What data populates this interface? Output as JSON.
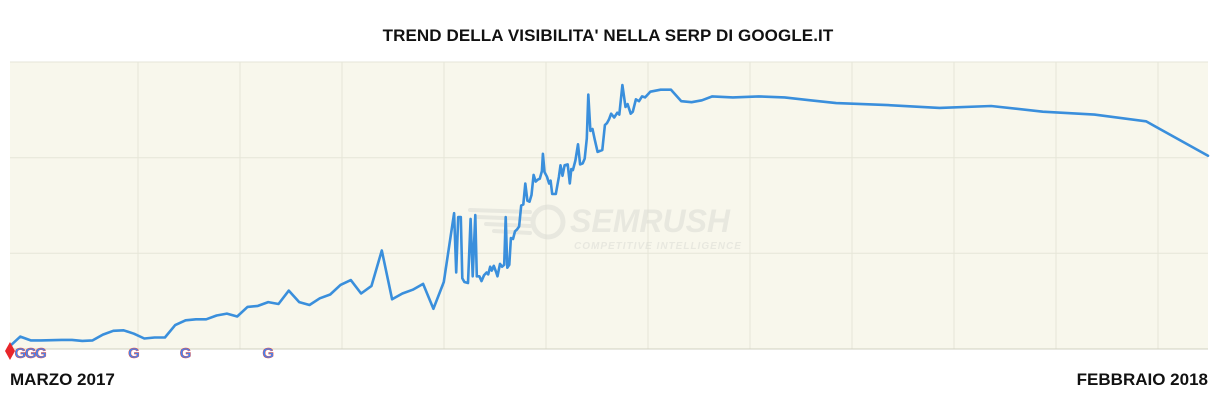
{
  "title": "TREND DELLA VISIBILITA' NELLA SERP DI GOOGLE.IT",
  "colors": {
    "plot_bg": "#f8f7ec",
    "line": "#3a8fdc",
    "grid": "#e6e6d8",
    "marker_red": "#e8262a"
  },
  "watermark": {
    "brand": "SEMRUSH",
    "tagline": "COMPETITIVE INTELLIGENCE"
  },
  "chart_data": {
    "type": "line",
    "title": "TREND DELLA VISIBILITA' NELLA SERP DI GOOGLE.IT",
    "x_start_label": "MARZO 2017",
    "x_end_label": "FEBBRAIO 2018",
    "x_range": [
      "2017-03",
      "2018-02"
    ],
    "y_axis_labels_shown": false,
    "grid": true,
    "ylim": [
      0,
      30
    ],
    "series": [
      {
        "values": [
          [
            0.0,
            0.3
          ],
          [
            2.0,
            1.3
          ],
          [
            4.0,
            0.9
          ],
          [
            6.0,
            0.9
          ],
          [
            10.0,
            0.95
          ],
          [
            12.0,
            0.95
          ],
          [
            14.0,
            0.85
          ],
          [
            16.0,
            0.9
          ],
          [
            18.0,
            1.5
          ],
          [
            20.0,
            1.9
          ],
          [
            22.0,
            1.95
          ],
          [
            24.0,
            1.6
          ],
          [
            26.0,
            1.1
          ],
          [
            28.0,
            1.2
          ],
          [
            30.0,
            1.2
          ],
          [
            32.0,
            2.5
          ],
          [
            34.0,
            3.0
          ],
          [
            36.0,
            3.1
          ],
          [
            38.0,
            3.1
          ],
          [
            40.0,
            3.5
          ],
          [
            42.0,
            3.7
          ],
          [
            44.0,
            3.4
          ],
          [
            46.0,
            4.4
          ],
          [
            48.0,
            4.5
          ],
          [
            50.0,
            4.9
          ],
          [
            52.0,
            4.7
          ],
          [
            54.0,
            6.1
          ],
          [
            56.0,
            4.9
          ],
          [
            58.0,
            4.6
          ],
          [
            60.0,
            5.3
          ],
          [
            62.0,
            5.7
          ],
          [
            64.0,
            6.7
          ],
          [
            66.0,
            7.2
          ],
          [
            68.0,
            5.8
          ],
          [
            70.0,
            6.6
          ],
          [
            72.0,
            10.3
          ],
          [
            74.0,
            5.2
          ],
          [
            76.0,
            5.8
          ],
          [
            78.0,
            6.2
          ],
          [
            80.0,
            6.8
          ],
          [
            82.0,
            4.2
          ],
          [
            84.0,
            7.0
          ],
          [
            86.0,
            14.2
          ],
          [
            86.4,
            8.0
          ],
          [
            86.8,
            13.8
          ],
          [
            87.3,
            13.8
          ],
          [
            87.6,
            7.4
          ],
          [
            88.0,
            7.0
          ],
          [
            88.7,
            6.9
          ],
          [
            89.2,
            13.6
          ],
          [
            89.6,
            7.6
          ],
          [
            90.1,
            14.0
          ],
          [
            90.4,
            7.6
          ],
          [
            90.9,
            7.6
          ],
          [
            91.3,
            7.1
          ],
          [
            91.8,
            7.7
          ],
          [
            92.3,
            8.0
          ],
          [
            92.6,
            7.8
          ],
          [
            93.0,
            8.6
          ],
          [
            93.3,
            8.2
          ],
          [
            93.7,
            8.7
          ],
          [
            94.1,
            8.1
          ],
          [
            94.4,
            7.6
          ],
          [
            94.9,
            8.9
          ],
          [
            95.3,
            8.6
          ],
          [
            95.7,
            8.8
          ],
          [
            96.0,
            13.8
          ],
          [
            96.3,
            8.5
          ],
          [
            96.7,
            8.8
          ],
          [
            97.0,
            11.6
          ],
          [
            97.4,
            11.5
          ],
          [
            97.8,
            12.3
          ],
          [
            98.2,
            12.5
          ],
          [
            98.6,
            12.8
          ],
          [
            99.0,
            15.0
          ],
          [
            99.4,
            15.1
          ],
          [
            99.8,
            17.3
          ],
          [
            100.2,
            15.5
          ],
          [
            100.6,
            15.4
          ],
          [
            101.0,
            16.1
          ],
          [
            101.4,
            18.2
          ],
          [
            101.8,
            17.5
          ],
          [
            102.2,
            17.7
          ],
          [
            102.6,
            17.8
          ],
          [
            103.0,
            18.6
          ],
          [
            103.2,
            20.4
          ],
          [
            103.5,
            18.5
          ],
          [
            104.0,
            18.0
          ],
          [
            104.4,
            17.3
          ],
          [
            104.7,
            17.6
          ],
          [
            105.0,
            16.2
          ],
          [
            105.7,
            16.2
          ],
          [
            106.3,
            18.0
          ],
          [
            106.6,
            19.2
          ],
          [
            107.0,
            18.1
          ],
          [
            107.4,
            19.2
          ],
          [
            108.0,
            19.3
          ],
          [
            108.4,
            17.3
          ],
          [
            108.7,
            18.8
          ],
          [
            109.0,
            18.7
          ],
          [
            109.5,
            19.7
          ],
          [
            110.0,
            21.4
          ],
          [
            110.4,
            19.3
          ],
          [
            110.9,
            19.4
          ],
          [
            111.3,
            19.9
          ],
          [
            111.7,
            22.0
          ],
          [
            112.0,
            26.6
          ],
          [
            112.4,
            22.8
          ],
          [
            112.8,
            23.0
          ],
          [
            113.2,
            22.0
          ],
          [
            113.8,
            20.6
          ],
          [
            114.2,
            20.7
          ],
          [
            114.7,
            20.8
          ],
          [
            115.2,
            23.4
          ],
          [
            115.6,
            23.6
          ],
          [
            116.0,
            24.0
          ],
          [
            116.4,
            24.6
          ],
          [
            117.0,
            24.2
          ],
          [
            117.6,
            24.7
          ],
          [
            118.0,
            24.5
          ],
          [
            118.6,
            27.6
          ],
          [
            119.2,
            25.3
          ],
          [
            119.6,
            25.6
          ],
          [
            120.2,
            24.6
          ],
          [
            120.6,
            24.8
          ],
          [
            121.2,
            26.1
          ],
          [
            121.8,
            25.9
          ],
          [
            122.4,
            26.4
          ],
          [
            123.0,
            26.3
          ],
          [
            124.0,
            26.9
          ],
          [
            126.0,
            27.1
          ],
          [
            128.0,
            27.1
          ],
          [
            130.0,
            25.9
          ],
          [
            132.0,
            25.8
          ],
          [
            134.0,
            26.0
          ],
          [
            136.0,
            26.4
          ],
          [
            140.0,
            26.3
          ],
          [
            145.0,
            26.4
          ],
          [
            150.0,
            26.3
          ],
          [
            155.0,
            26.0
          ],
          [
            160.0,
            25.7
          ],
          [
            170.0,
            25.5
          ],
          [
            180.0,
            25.2
          ],
          [
            190.0,
            25.4
          ],
          [
            200.0,
            24.8
          ],
          [
            210.0,
            24.5
          ],
          [
            220.0,
            23.8
          ],
          [
            232.0,
            20.2
          ]
        ]
      }
    ],
    "annotation_markers": [
      {
        "x_index": 0.0,
        "type": "red-diamond"
      },
      {
        "x_index": 2.0,
        "type": "google-update"
      },
      {
        "x_index": 4.0,
        "type": "google-update"
      },
      {
        "x_index": 6.0,
        "type": "google-update"
      },
      {
        "x_index": 24.0,
        "type": "google-update"
      },
      {
        "x_index": 34.0,
        "type": "google-update"
      },
      {
        "x_index": 50.0,
        "type": "google-update"
      }
    ]
  }
}
